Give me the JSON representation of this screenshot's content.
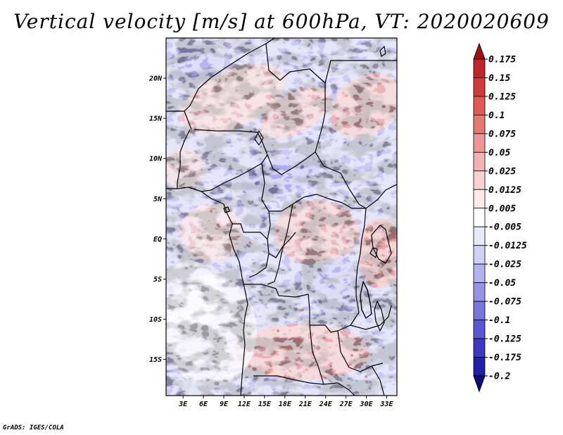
{
  "title": "Vertical velocity [m/s] at 600hPa, VT: 2020020609",
  "credit": "GrADS: IGES/COLA",
  "map": {
    "lat_labels": [
      "20N",
      "15N",
      "10N",
      "5N",
      "EQ",
      "5S",
      "10S",
      "15S"
    ],
    "lon_labels": [
      "3E",
      "6E",
      "9E",
      "12E",
      "15E",
      "18E",
      "21E",
      "24E",
      "27E",
      "30E",
      "33E"
    ],
    "lat_values": [
      20,
      15,
      10,
      5,
      0,
      -5,
      -10,
      -15
    ],
    "lon_values": [
      3,
      6,
      9,
      12,
      15,
      18,
      21,
      24,
      27,
      30,
      33
    ],
    "lon_range": [
      0.5,
      34.5
    ],
    "lat_range": [
      -19.5,
      25
    ],
    "field": "vertical velocity",
    "units": "m/s",
    "level": "600hPa"
  },
  "colorbar": {
    "labels": [
      "0.175",
      "0.15",
      "0.125",
      "0.1",
      "0.075",
      "0.05",
      "0.025",
      "0.0125",
      "0.005",
      "-0.005",
      "-0.0125",
      "-0.025",
      "-0.05",
      "-0.075",
      "-0.1",
      "-0.125",
      "-0.175",
      "-0.2"
    ],
    "colors": [
      "#a50f15",
      "#c0252a",
      "#d33a3a",
      "#df5a55",
      "#e67873",
      "#ed9693",
      "#f3b4b1",
      "#f8d0ce",
      "#fce9e8",
      "#ffffff",
      "#e9e9fc",
      "#d0d0f7",
      "#b2b2f0",
      "#9494e8",
      "#7676df",
      "#5858d4",
      "#3a3ac2",
      "#2020a8",
      "#0c0c7a"
    ],
    "extend": "both"
  }
}
